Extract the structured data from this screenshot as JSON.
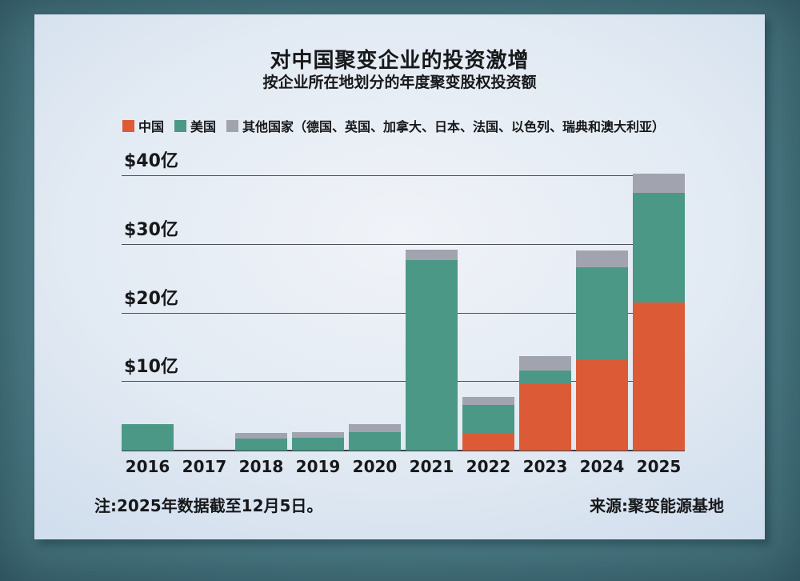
{
  "header": {
    "title": "对中国聚变企业的投资激增",
    "subtitle": "按企业所在地划分的年度聚变股权投资额"
  },
  "legend": {
    "items": [
      {
        "key": "china",
        "label": "中国",
        "color": "#dc5b36"
      },
      {
        "key": "usa",
        "label": "美国",
        "color": "#4b9886"
      },
      {
        "key": "other",
        "label": "其他国家（德国、英国、加拿大、日本、法国、以色列、瑞典和澳大利亚）",
        "color": "#a1a4ae"
      }
    ]
  },
  "footer": {
    "note": "注:2025年数据截至12月5日。",
    "source": "来源:聚变能源基地"
  },
  "chart_data": {
    "type": "bar",
    "stacked": true,
    "title": "对中国聚变企业的投资激增",
    "subtitle": "按企业所在地划分的年度聚变股权投资额",
    "categories": [
      "2016",
      "2017",
      "2018",
      "2019",
      "2020",
      "2021",
      "2022",
      "2023",
      "2024",
      "2025"
    ],
    "series": [
      {
        "key": "china",
        "name": "中国",
        "color": "#dc5b36",
        "values": [
          0,
          0,
          0,
          0,
          0,
          0,
          2.5,
          9.7,
          13.2,
          21.6
        ]
      },
      {
        "key": "usa",
        "name": "美国",
        "color": "#4b9886",
        "values": [
          3.8,
          0,
          1.8,
          1.9,
          2.7,
          27.8,
          4.1,
          2.0,
          13.5,
          15.9
        ]
      },
      {
        "key": "other",
        "name": "其他国家",
        "color": "#a1a4ae",
        "values": [
          0,
          0,
          0.8,
          0.8,
          1.2,
          1.5,
          1.2,
          2.1,
          2.5,
          2.8
        ]
      }
    ],
    "y_ticks": [
      {
        "value": 10,
        "label": "$10亿"
      },
      {
        "value": 20,
        "label": "$20亿"
      },
      {
        "value": 30,
        "label": "$30亿"
      },
      {
        "value": 40,
        "label": "$40亿"
      }
    ],
    "ylim": [
      0,
      40
    ],
    "grid": true,
    "legend_position": "top-left"
  }
}
